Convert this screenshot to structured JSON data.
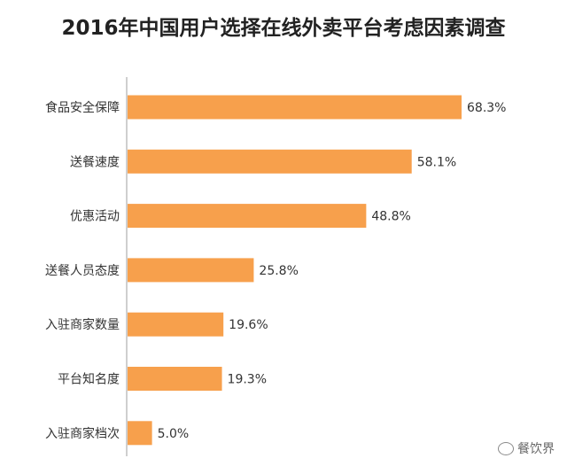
{
  "title": "2016年中国用户选择在线外卖平台考虑因素调查",
  "watermark": "餐饮界",
  "colors": {
    "bar": "#F7A04C",
    "axis": "#BFBFBF"
  },
  "chart_data": {
    "type": "bar",
    "orientation": "horizontal",
    "title": "2016年中国用户选择在线外卖平台考虑因素调查",
    "categories": [
      "食品安全保障",
      "送餐速度",
      "优惠活动",
      "送餐人员态度",
      "入驻商家数量",
      "平台知名度",
      "入驻商家档次"
    ],
    "values": [
      68.3,
      58.1,
      48.8,
      25.8,
      19.6,
      19.3,
      5.0
    ],
    "value_labels": [
      "68.3%",
      "58.1%",
      "48.8%",
      "25.8%",
      "19.6%",
      "19.3%",
      "5.0%"
    ],
    "unit": "%",
    "xlim": [
      0,
      68.3
    ],
    "grid": false,
    "legend": "none"
  }
}
